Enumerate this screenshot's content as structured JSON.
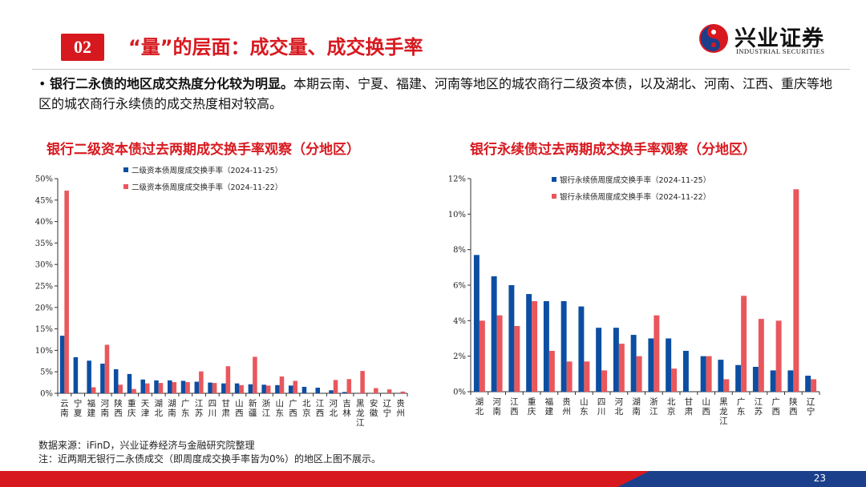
{
  "header": {
    "section_number": "02",
    "title": "“量”的层面：成交量、成交换手率",
    "logo_cn": "兴业证券",
    "logo_en": "INDUSTRIAL SECURITIES"
  },
  "bullet": {
    "bold": "银行二永债的地区成交热度分化较为明显。",
    "text": "本期云南、宁夏、福建、河南等地区的城农商行二级资本债，以及湖北、河南、江西、重庆等地区的城农商行永续债的成交热度相对较高。"
  },
  "colors": {
    "accent": "#d7191f",
    "series_blue": "#0c4ea2",
    "series_red": "#e9575c"
  },
  "chart_data": [
    {
      "type": "bar",
      "title": "银行二级资本债过去两期成交换手率观察（分地区）",
      "categories": [
        "云南",
        "宁夏",
        "福建",
        "河南",
        "陕西",
        "重庆",
        "天津",
        "湖北",
        "湖南",
        "广东",
        "江苏",
        "四川",
        "甘肃",
        "山西",
        "新疆",
        "浙江",
        "山东",
        "广西",
        "北京",
        "江西",
        "河北",
        "吉林",
        "黑龙江",
        "安徽",
        "辽宁",
        "贵州"
      ],
      "series": [
        {
          "name": "二级资本债周度成交换手率（2024-11-25）",
          "color": "#0c4ea2",
          "values": [
            13.4,
            8.4,
            7.6,
            6.9,
            5.6,
            4.5,
            3.2,
            3.0,
            3.0,
            2.9,
            2.7,
            2.5,
            2.3,
            2.3,
            2.1,
            2.0,
            1.9,
            1.8,
            1.5,
            1.3,
            0.7,
            0.3,
            0,
            0,
            0,
            0
          ]
        },
        {
          "name": "二级资本债周度成交换手率（2024-11-22）",
          "color": "#e9575c",
          "values": [
            47.2,
            0,
            1.4,
            11.3,
            2.0,
            1.0,
            2.3,
            2.4,
            2.6,
            2.6,
            5.1,
            2.4,
            6.3,
            1.9,
            8.5,
            1.8,
            3.9,
            2.9,
            0,
            0,
            3.1,
            3.3,
            5.2,
            1.2,
            0.9,
            0.4
          ]
        }
      ],
      "yaxis": {
        "min": 0,
        "max": 50,
        "step": 5,
        "format": "percent"
      },
      "legend": "top-left"
    },
    {
      "type": "bar",
      "title": "银行永续债过去两期成交换手率观察（分地区）",
      "categories": [
        "湖北",
        "河南",
        "江西",
        "重庆",
        "福建",
        "贵州",
        "山东",
        "四川",
        "河北",
        "湖南",
        "浙江",
        "北京",
        "甘肃",
        "山西",
        "黑龙江",
        "广东",
        "江苏",
        "广西",
        "陕西",
        "辽宁"
      ],
      "series": [
        {
          "name": "银行永续债周度成交换手率（2024-11-25）",
          "color": "#0c4ea2",
          "values": [
            7.7,
            6.5,
            6.0,
            5.5,
            5.1,
            5.1,
            4.8,
            3.6,
            3.6,
            3.2,
            3.0,
            3.0,
            2.3,
            2.0,
            1.8,
            1.5,
            1.4,
            1.2,
            1.2,
            0.9
          ]
        },
        {
          "name": "银行永续债周度成交换手率（2024-11-22）",
          "color": "#e9575c",
          "values": [
            4.0,
            4.3,
            3.7,
            5.1,
            2.3,
            1.7,
            1.7,
            1.2,
            2.7,
            2.0,
            4.3,
            1.3,
            0,
            2.0,
            0.7,
            5.4,
            4.1,
            4.0,
            11.4,
            0.7
          ]
        }
      ],
      "yaxis": {
        "min": 0,
        "max": 12,
        "step": 2,
        "format": "percent"
      },
      "legend": "top-left"
    }
  ],
  "notes": {
    "source": "数据来源：iFinD，兴业证券经济与金融研究院整理",
    "note": "注：近两期无银行二永债成交（即周度成交换手率皆为0%）的地区上图不展示。"
  },
  "footer": {
    "page": "23"
  }
}
